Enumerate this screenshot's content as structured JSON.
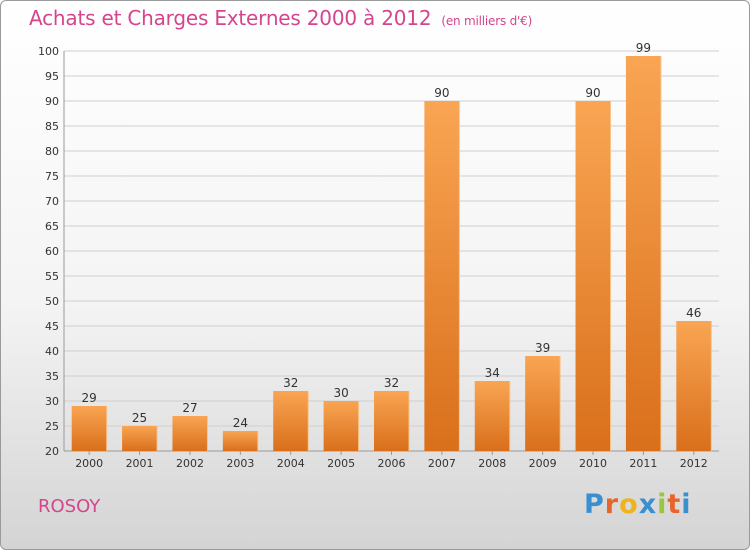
{
  "header": {
    "title": "Achats et Charges Externes 2000 à 2012",
    "subtitle": "(en milliers d'€)"
  },
  "footer": {
    "commune": "ROSOY",
    "logo_letters": [
      "P",
      "r",
      "o",
      "x",
      "i",
      "t",
      "i"
    ]
  },
  "colors": {
    "title": "#d4458e",
    "bar_top": "#f9a553",
    "bar_bottom": "#d96f1b",
    "grid": "#cfcfcf"
  },
  "chart_data": {
    "type": "bar",
    "title": "Achats et Charges Externes 2000 à 2012",
    "subtitle": "(en milliers d'€)",
    "categories": [
      "2000",
      "2001",
      "2002",
      "2003",
      "2004",
      "2005",
      "2006",
      "2007",
      "2008",
      "2009",
      "2010",
      "2011",
      "2012"
    ],
    "values": [
      29,
      25,
      27,
      24,
      32,
      30,
      32,
      90,
      34,
      39,
      90,
      99,
      46
    ],
    "ylim": [
      20,
      100
    ],
    "yticks": [
      20,
      25,
      30,
      35,
      40,
      45,
      50,
      55,
      60,
      65,
      70,
      75,
      80,
      85,
      90,
      95,
      100
    ],
    "grid": true,
    "data_labels": true
  }
}
